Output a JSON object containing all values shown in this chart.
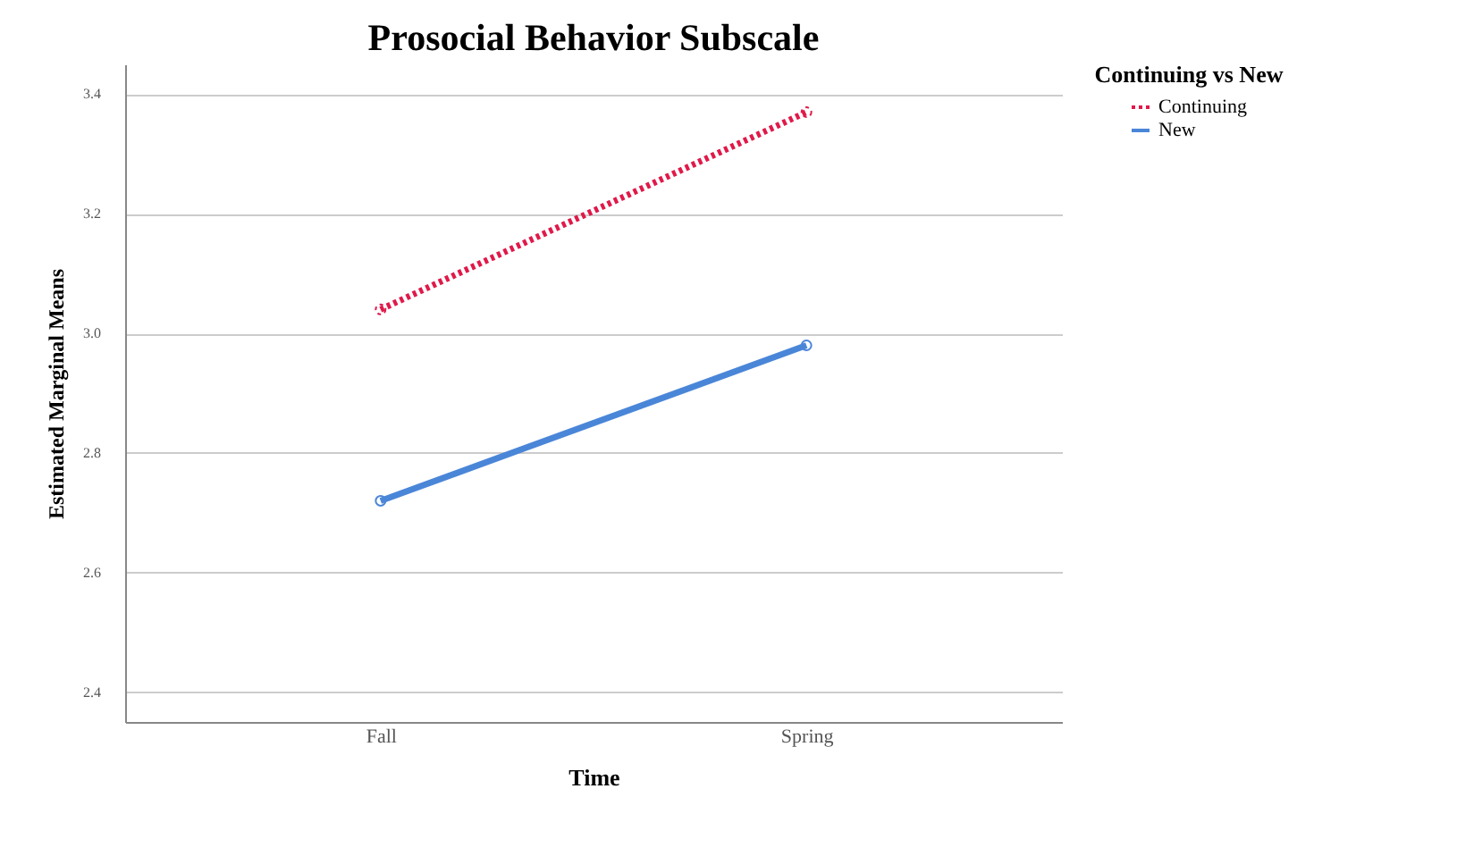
{
  "chart_data": {
    "type": "line",
    "title": "Prosocial Behavior Subscale",
    "xlabel": "Time",
    "ylabel": "Estimated Marginal Means",
    "legend_title": "Continuing vs New",
    "categories": [
      "Fall",
      "Spring"
    ],
    "series": [
      {
        "name": "Continuing",
        "color": "#e0194a",
        "values": [
          3.04,
          3.37
        ],
        "line_style": "dotted"
      },
      {
        "name": "New",
        "color": "#4a86d8",
        "values": [
          2.72,
          2.98
        ],
        "line_style": "solid"
      }
    ],
    "ylim": [
      2.35,
      3.45
    ],
    "yticks": [
      {
        "value": 2.4,
        "label": "2.4"
      },
      {
        "value": 2.6,
        "label": "2.6"
      },
      {
        "value": 2.8,
        "label": "2.8"
      },
      {
        "value": 3.0,
        "label": "3.0"
      },
      {
        "value": 3.2,
        "label": "3.2"
      },
      {
        "value": 3.4,
        "label": "3.4"
      }
    ],
    "grid": "y",
    "legend": "top right",
    "marker": "circle"
  }
}
